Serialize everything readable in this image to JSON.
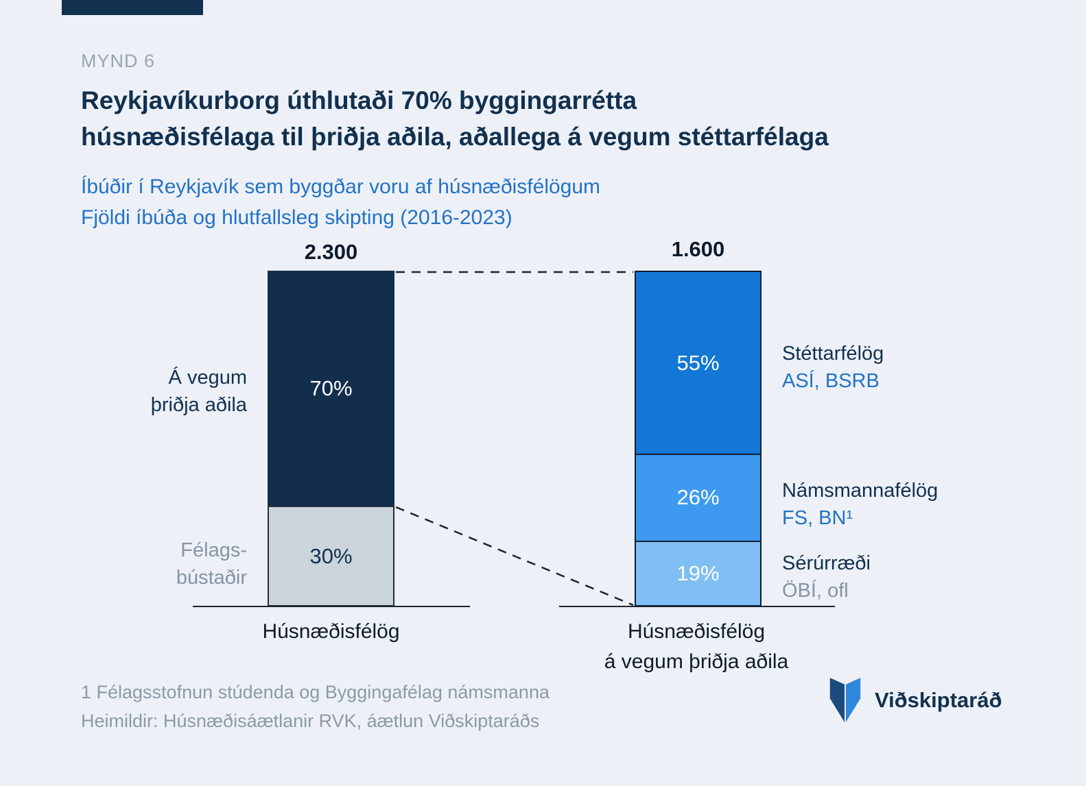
{
  "colors": {
    "brand_navy": "#12304f",
    "background": "#edf1f7",
    "subtitle_blue": "#2372c6",
    "segment_navy": "#132e4d",
    "segment_gray": "#ccd4dc",
    "segment_blue_strong": "#1477d6",
    "segment_blue_mid": "#3e9af0",
    "segment_blue_light": "#7fbff3"
  },
  "header": {
    "figure_label": "MYND 6",
    "title_line1": "Reykjavíkurborg úthlutaði 70% byggingarrétta",
    "title_line2": "húsnæðisfélaga til þriðja aðila, aðallega á vegum stéttarfélaga",
    "subtitle_line1": "Íbúðir í Reykjavík sem byggðar voru af húsnæðisfélögum",
    "subtitle_line2": "Fjöldi íbúða og hlutfallsleg skipting (2016-2023)"
  },
  "chart_data": {
    "type": "bar",
    "subtype": "stacked_percentage_comparison",
    "title": "Reykjavíkurborg úthlutaði 70% byggingarrétta húsnæðisfélaga til þriðja aðila, aðallega á vegum stéttarfélaga",
    "subtitle": "Íbúðir í Reykjavík sem byggðar voru af húsnæðisfélögum — Fjöldi íbúða og hlutfallsleg skipting (2016-2023)",
    "legend_position": "right",
    "grid": false,
    "bars": [
      {
        "category_lines": [
          "Húsnæðisfélög"
        ],
        "total_label": "2.300",
        "total_value": 2300,
        "segments": [
          {
            "name": "Á vegum þriðja aðila",
            "pct": 70,
            "label": "70%",
            "color": "#132e4d"
          },
          {
            "name": "Félagsbústaðir",
            "pct": 30,
            "label": "30%",
            "color": "#ccd4dc"
          }
        ]
      },
      {
        "category_lines": [
          "Húsnæðisfélög",
          "á vegum þriðja aðila"
        ],
        "total_label": "1.600",
        "total_value": 1600,
        "segments": [
          {
            "name": "Stéttarfélög (ASÍ, BSRB)",
            "pct": 55,
            "label": "55%",
            "color": "#1477d6"
          },
          {
            "name": "Námsmannafélög (FS, BN)",
            "pct": 26,
            "label": "26%",
            "color": "#3e9af0"
          },
          {
            "name": "Sérúrræði (ÖBÍ, ofl)",
            "pct": 19,
            "label": "19%",
            "color": "#7fbff3"
          }
        ]
      }
    ],
    "left_annotations": [
      {
        "line1": "Á vegum",
        "line2": "þriðja aðila"
      },
      {
        "line1": "Félags-",
        "line2": "bústaðir"
      }
    ],
    "right_legend": [
      {
        "title": "Stéttarfélög",
        "subtitle": "ASÍ, BSRB"
      },
      {
        "title": "Námsmannafélög",
        "subtitle": "FS, BN¹"
      },
      {
        "title": "Sérúrræði",
        "subtitle": "ÖBÍ, ofl"
      }
    ]
  },
  "footer": {
    "footnote": "1 Félagsstofnun stúdenda og Byggingafélag námsmanna",
    "source": "Heimildir: Húsnæðisáætlanir RVK, áætlun Viðskiptaráðs",
    "logo_text": "Viðskiptaráð"
  }
}
